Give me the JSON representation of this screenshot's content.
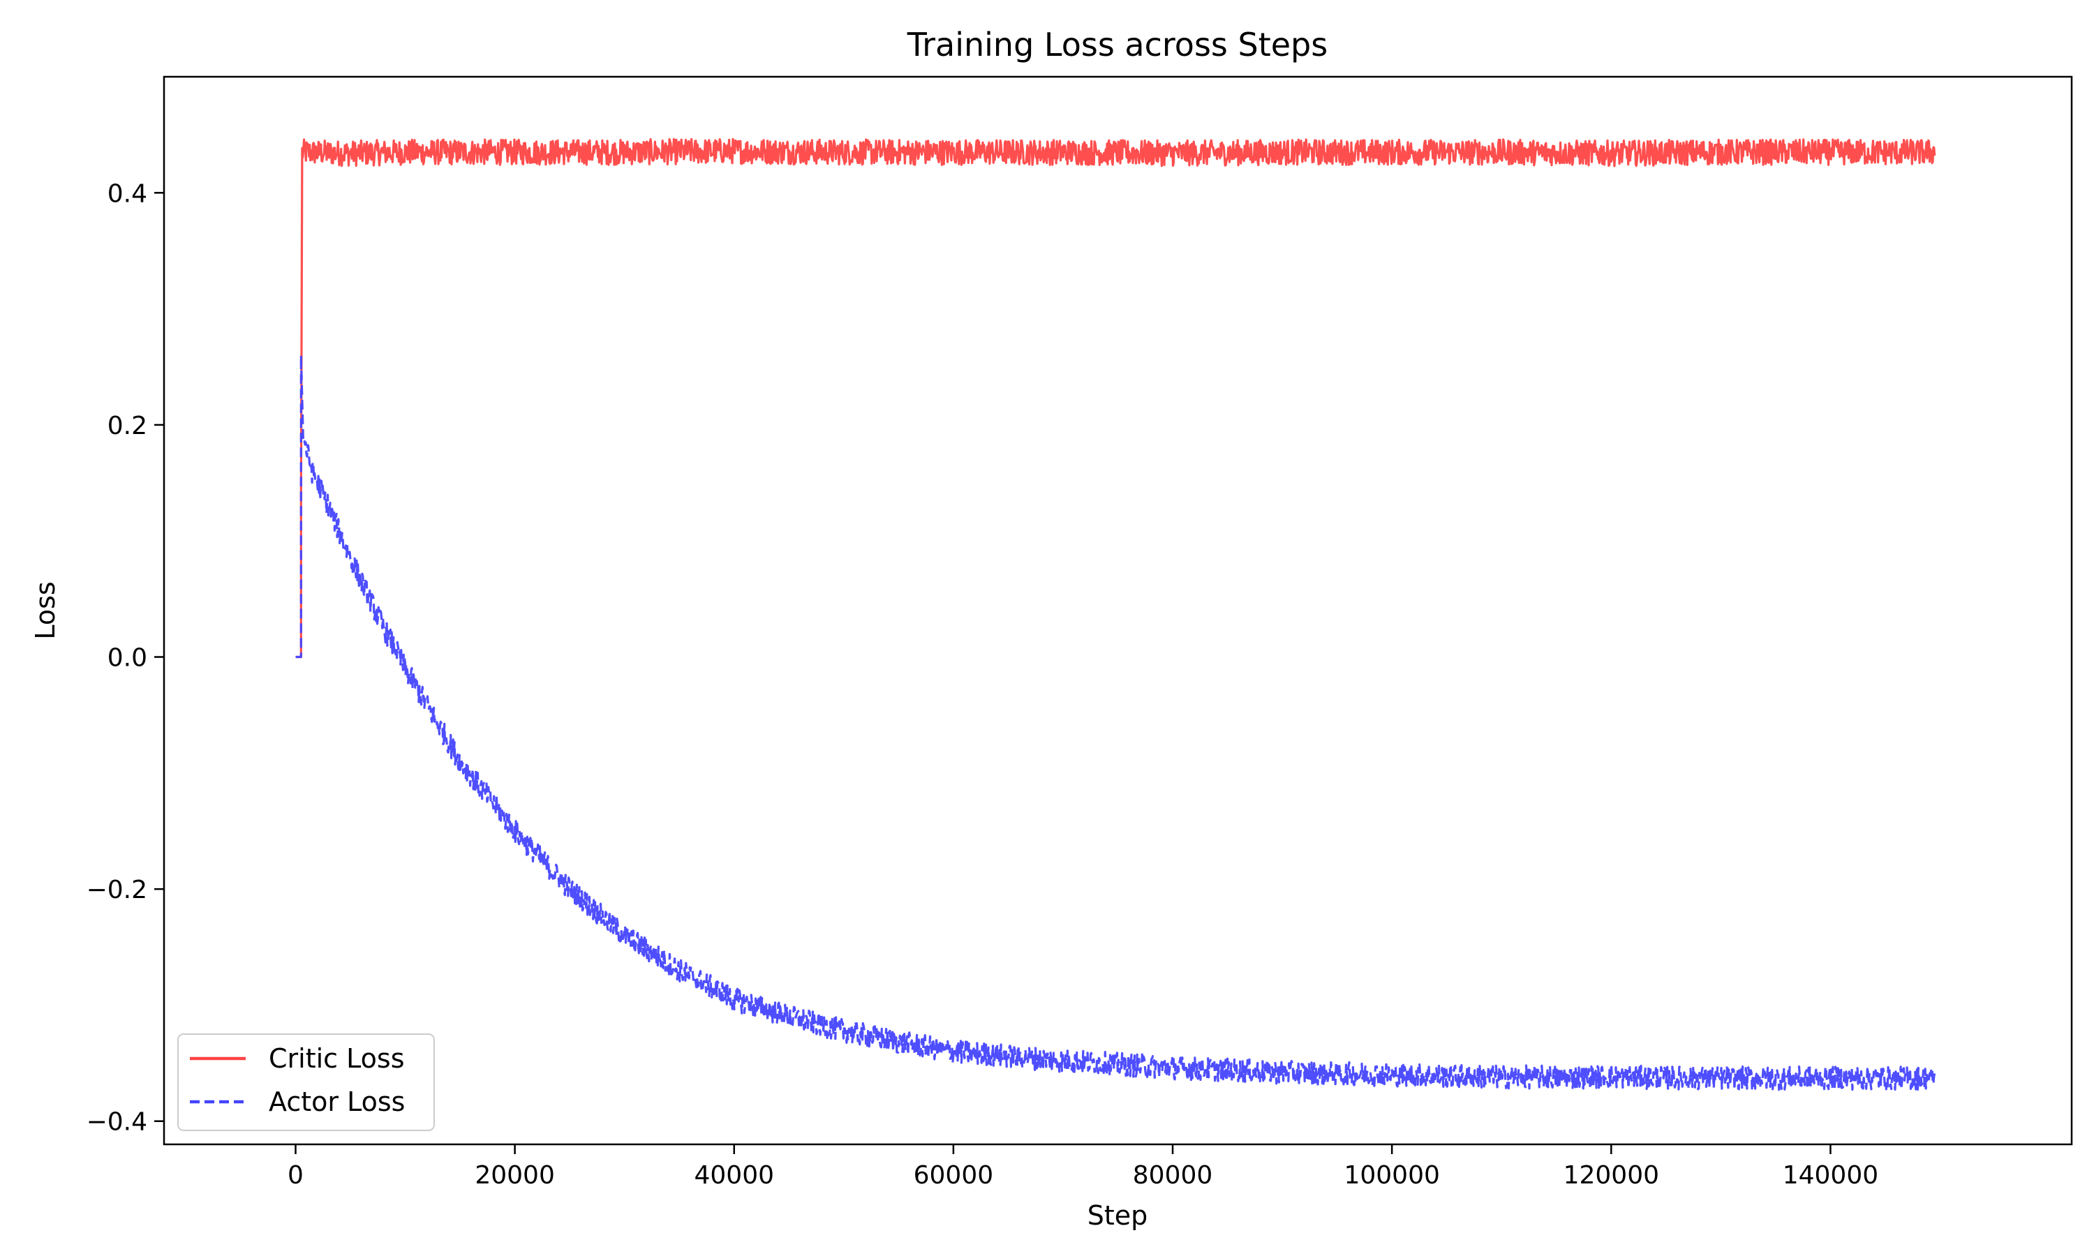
{
  "chart_data": {
    "type": "line",
    "title": "Training Loss across Steps",
    "xlabel": "Step",
    "ylabel": "Loss",
    "xlim": [
      -12000,
      162000
    ],
    "ylim": [
      -0.42,
      0.5
    ],
    "xticks": [
      0,
      20000,
      40000,
      60000,
      80000,
      100000,
      120000,
      140000
    ],
    "xtick_labels": [
      "0",
      "20000",
      "40000",
      "60000",
      "80000",
      "100000",
      "120000",
      "140000"
    ],
    "yticks": [
      -0.4,
      -0.2,
      0.0,
      0.2,
      0.4
    ],
    "ytick_labels": [
      "−0.4",
      "−0.2",
      "0.0",
      "0.2",
      "0.4"
    ],
    "grid": false,
    "legend_position": "lower-left",
    "series": [
      {
        "name": "Critic Loss",
        "color": "#ff4444",
        "style": "solid",
        "x": [
          0,
          500,
          500,
          600,
          5000,
          10000,
          20000,
          30000,
          40000,
          50000,
          60000,
          70000,
          80000,
          90000,
          100000,
          110000,
          120000,
          130000,
          140000,
          149500
        ],
        "y": [
          0.0,
          0.0,
          0.14,
          0.435,
          0.434,
          0.435,
          0.435,
          0.435,
          0.436,
          0.435,
          0.435,
          0.435,
          0.434,
          0.435,
          0.435,
          0.435,
          0.434,
          0.435,
          0.435,
          0.435
        ],
        "noise": 0.011
      },
      {
        "name": "Actor Loss",
        "color": "#4444ff",
        "style": "dashed",
        "x": [
          0,
          500,
          500,
          700,
          1500,
          3000,
          5000,
          7500,
          10000,
          12500,
          15000,
          20000,
          25000,
          30000,
          35000,
          40000,
          45000,
          50000,
          55000,
          60000,
          70000,
          80000,
          90000,
          100000,
          110000,
          120000,
          130000,
          140000,
          149500
        ],
        "y": [
          0.0,
          0.0,
          0.26,
          0.19,
          0.16,
          0.13,
          0.085,
          0.035,
          -0.01,
          -0.05,
          -0.09,
          -0.15,
          -0.2,
          -0.24,
          -0.27,
          -0.295,
          -0.31,
          -0.322,
          -0.332,
          -0.34,
          -0.348,
          -0.354,
          -0.358,
          -0.36,
          -0.362,
          -0.362,
          -0.363,
          -0.363,
          -0.363
        ],
        "noise": 0.01
      }
    ]
  }
}
